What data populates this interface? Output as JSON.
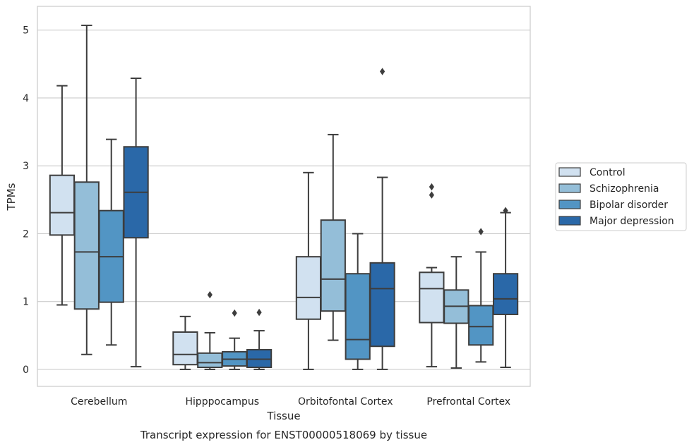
{
  "chart_data": {
    "type": "box",
    "xlabel": "Tissue",
    "ylabel": "TPMs",
    "caption": "Transcript expression for ENST00000518069 by tissue",
    "ylim": [
      -0.25,
      5.35
    ],
    "yticks": [
      0,
      1,
      2,
      3,
      4,
      5
    ],
    "grid": "horizontal",
    "legend_position": "right",
    "categories": [
      "Cerebellum",
      "Hipppocampus",
      "Orbitofontal Cortex",
      "Prefrontal Cortex"
    ],
    "series": [
      {
        "name": "Control",
        "color": "#d1e1f0",
        "boxes": [
          {
            "whislo": 0.95,
            "q1": 1.98,
            "med": 2.31,
            "q3": 2.86,
            "whishi": 4.18,
            "fliers": []
          },
          {
            "whislo": 0.0,
            "q1": 0.07,
            "med": 0.22,
            "q3": 0.55,
            "whishi": 0.78,
            "fliers": []
          },
          {
            "whislo": 0.0,
            "q1": 0.74,
            "med": 1.06,
            "q3": 1.66,
            "whishi": 2.9,
            "fliers": []
          },
          {
            "whislo": 0.04,
            "q1": 0.69,
            "med": 1.19,
            "q3": 1.43,
            "whishi": 1.5,
            "fliers": [
              2.57,
              2.69
            ]
          }
        ]
      },
      {
        "name": "Schizophrenia",
        "color": "#94bed8",
        "boxes": [
          {
            "whislo": 0.22,
            "q1": 0.89,
            "med": 1.73,
            "q3": 2.76,
            "whishi": 5.07,
            "fliers": []
          },
          {
            "whislo": 0.0,
            "q1": 0.03,
            "med": 0.1,
            "q3": 0.24,
            "whishi": 0.54,
            "fliers": [
              1.1
            ]
          },
          {
            "whislo": 0.43,
            "q1": 0.86,
            "med": 1.33,
            "q3": 2.2,
            "whishi": 3.46,
            "fliers": []
          },
          {
            "whislo": 0.02,
            "q1": 0.68,
            "med": 0.93,
            "q3": 1.17,
            "whishi": 1.66,
            "fliers": []
          }
        ]
      },
      {
        "name": "Bipolar disorder",
        "color": "#5295c4",
        "boxes": [
          {
            "whislo": 0.36,
            "q1": 0.99,
            "med": 1.66,
            "q3": 2.34,
            "whishi": 3.39,
            "fliers": []
          },
          {
            "whislo": 0.0,
            "q1": 0.05,
            "med": 0.15,
            "q3": 0.26,
            "whishi": 0.46,
            "fliers": [
              0.83
            ]
          },
          {
            "whislo": 0.0,
            "q1": 0.15,
            "med": 0.44,
            "q3": 1.41,
            "whishi": 2.0,
            "fliers": []
          },
          {
            "whislo": 0.11,
            "q1": 0.36,
            "med": 0.63,
            "q3": 0.94,
            "whishi": 1.73,
            "fliers": [
              2.03
            ]
          }
        ]
      },
      {
        "name": "Major depression",
        "color": "#2a68a8",
        "boxes": [
          {
            "whislo": 0.04,
            "q1": 1.94,
            "med": 2.61,
            "q3": 3.28,
            "whishi": 4.29,
            "fliers": []
          },
          {
            "whislo": 0.0,
            "q1": 0.03,
            "med": 0.15,
            "q3": 0.29,
            "whishi": 0.57,
            "fliers": [
              0.84
            ]
          },
          {
            "whislo": 0.0,
            "q1": 0.34,
            "med": 1.19,
            "q3": 1.57,
            "whishi": 2.83,
            "fliers": [
              4.39
            ]
          },
          {
            "whislo": 0.03,
            "q1": 0.81,
            "med": 1.04,
            "q3": 1.41,
            "whishi": 2.31,
            "fliers": [
              2.34
            ]
          }
        ]
      }
    ]
  }
}
